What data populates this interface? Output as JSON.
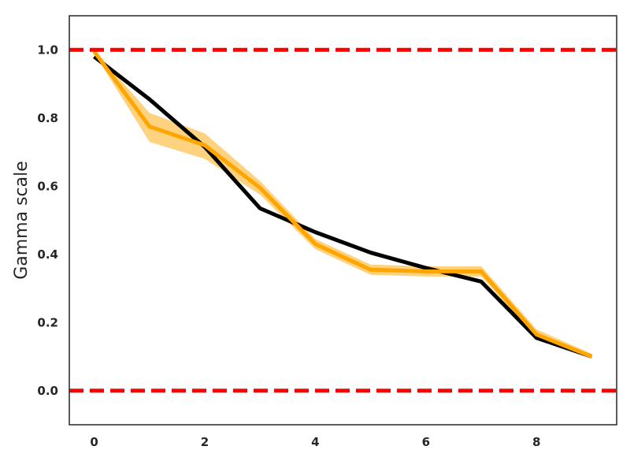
{
  "chart_data": {
    "type": "line",
    "title": "",
    "xlabel": "",
    "ylabel": "Gamma scale",
    "xlim": [
      -0.45,
      9.45
    ],
    "ylim": [
      -0.1,
      1.1
    ],
    "x_ticks": [
      0,
      2,
      4,
      6,
      8
    ],
    "x_tick_labels": [
      "0",
      "2",
      "4",
      "6",
      "8"
    ],
    "y_ticks": [
      0.0,
      0.2,
      0.4,
      0.6,
      0.8,
      1.0
    ],
    "y_tick_labels": [
      "0.0",
      "0.2",
      "0.4",
      "0.6",
      "0.8",
      "1.0"
    ],
    "grid": false,
    "legend": "none",
    "x": [
      0,
      1,
      2,
      3,
      4,
      5,
      6,
      7,
      8,
      9
    ],
    "series": [
      {
        "color": "#000000",
        "values": [
          0.98,
          0.855,
          0.715,
          0.535,
          0.465,
          0.405,
          0.36,
          0.32,
          0.155,
          0.1
        ]
      },
      {
        "color": "#FFA500",
        "values": [
          0.995,
          0.775,
          0.72,
          0.595,
          0.43,
          0.355,
          0.35,
          0.35,
          0.165,
          0.1
        ],
        "band_lower": [
          0.99,
          0.73,
          0.68,
          0.575,
          0.415,
          0.34,
          0.335,
          0.335,
          0.155,
          0.095
        ],
        "band_upper": [
          1.0,
          0.815,
          0.755,
          0.615,
          0.445,
          0.37,
          0.365,
          0.365,
          0.18,
          0.108
        ]
      }
    ],
    "reference_lines": [
      {
        "y": 1.0,
        "color": "#FF0000",
        "style": "dashed"
      },
      {
        "y": 0.0,
        "color": "#FF0000",
        "style": "dashed"
      }
    ]
  }
}
